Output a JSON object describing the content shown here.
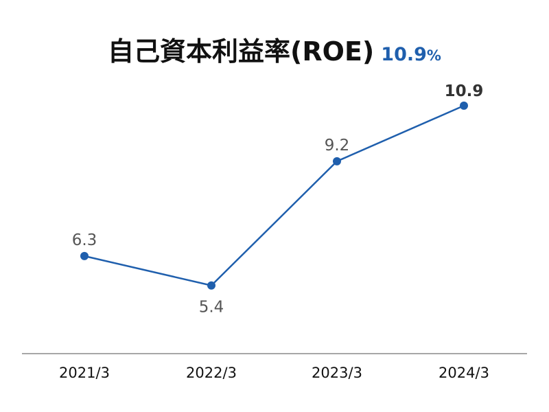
{
  "title": {
    "text": "自己資本利益率(ROE)",
    "value": "10.9",
    "unit": "%"
  },
  "colors": {
    "line": "#1f5fad",
    "accent": "#1f5fad"
  },
  "chart_data": {
    "type": "line",
    "title": "自己資本利益率(ROE)",
    "categories": [
      "2021/3",
      "2022/3",
      "2023/3",
      "2024/3"
    ],
    "series": [
      {
        "values": [
          6.3,
          5.4,
          9.2,
          10.9
        ]
      }
    ],
    "data_labels": [
      "6.3",
      "5.4",
      "9.2",
      "10.9"
    ],
    "label_positions": [
      "above",
      "below",
      "above",
      "above"
    ],
    "emphasized_index": 3,
    "ylim": [
      3,
      12.2
    ],
    "grid": false,
    "legend": "none",
    "xlabel": "",
    "ylabel": ""
  }
}
